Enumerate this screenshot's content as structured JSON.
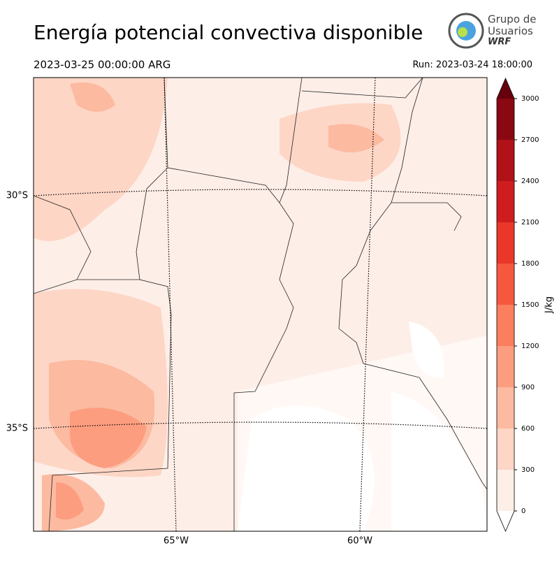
{
  "header": {
    "title": "Energía potencial convectiva disponible",
    "valid_time": "2023-03-25 00:00:00 ARG",
    "run": "Run: 2023-03-24 18:00:00",
    "logo": {
      "line1": "Grupo de",
      "line2": "Usuarios",
      "line3": "WRF"
    }
  },
  "map": {
    "lat_labels": [
      "30°S",
      "35°S"
    ],
    "lon_labels": [
      "65°W",
      "60°W"
    ]
  },
  "colorbar": {
    "label": "J/kg",
    "ticks": [
      0,
      300,
      600,
      900,
      1200,
      1500,
      1800,
      2100,
      2400,
      2700,
      3000
    ],
    "colors": [
      "#feeee8",
      "#fdd6c6",
      "#fcbaa0",
      "#fc9d7f",
      "#fb7e5e",
      "#f6583e",
      "#ea3729",
      "#cf1c1f",
      "#b01217",
      "#8a0812"
    ],
    "over_color": "#67000d",
    "under_color": "#ffffff"
  }
}
